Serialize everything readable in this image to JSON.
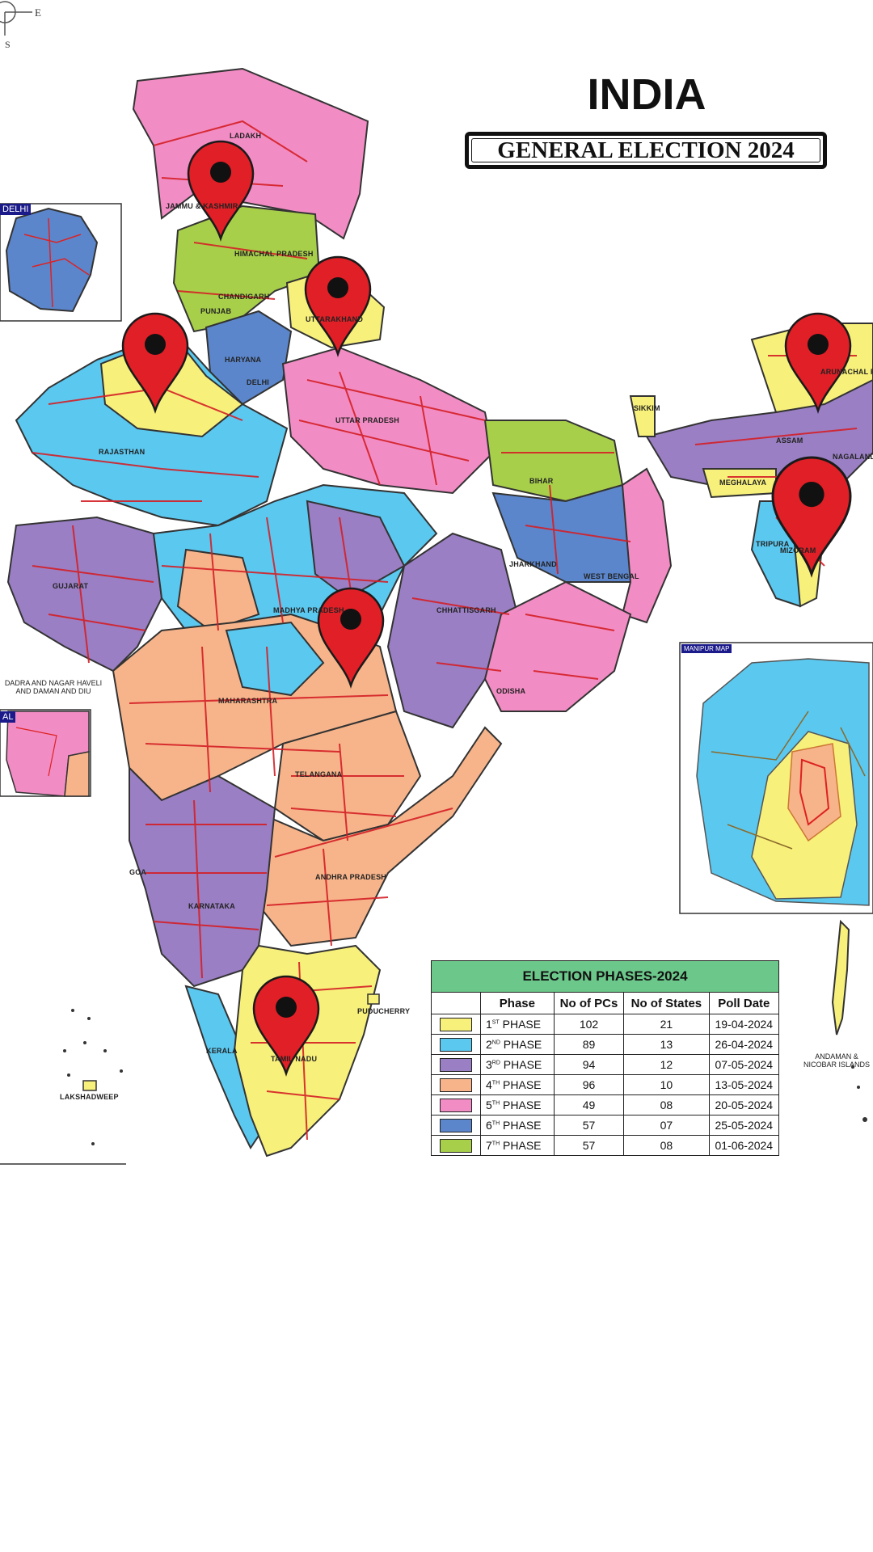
{
  "map": {
    "title": "INDIA",
    "subtitle": "GENERAL ELECTION 2024",
    "compass": {
      "east": "E",
      "south": "S"
    },
    "insets": {
      "delhi": "DELHI",
      "manipur": "MANIPUR MAP",
      "goa": "AL"
    },
    "region_labels": [
      "LADAKH",
      "JAMMU & KASHMIR",
      "HIMACHAL PRADESH",
      "CHANDIGARH",
      "PUNJAB",
      "UTTARAKHAND",
      "HARYANA",
      "DELHI",
      "RAJASTHAN",
      "UTTAR PRADESH",
      "SIKKIM",
      "ARUNACHAL PRADESH",
      "ASSAM",
      "NAGALAND",
      "MEGHALAYA",
      "BIHAR",
      "TRIPURA",
      "MIZORAM",
      "JHARKHAND",
      "WEST BENGAL",
      "GUJARAT",
      "MADHYA PRADESH",
      "CHHATTISGARH",
      "ODISHA",
      "MAHARASHTRA",
      "TELANGANA",
      "ANDHRA PRADESH",
      "KARNATAKA",
      "GOA",
      "KERALA",
      "TAMIL NADU",
      "PUDUCHERRY",
      "LAKSHADWEEP",
      "ANDAMAN & NICOBAR ISLANDS",
      "DADRA AND NAGAR HAVELI AND DAMAN AND DIU"
    ],
    "pins": [
      {
        "name": "pin-jammu-kashmir"
      },
      {
        "name": "pin-uttarakhand"
      },
      {
        "name": "pin-rajasthan"
      },
      {
        "name": "pin-arunachal-pradesh"
      },
      {
        "name": "pin-mizoram"
      },
      {
        "name": "pin-madhya-pradesh"
      },
      {
        "name": "pin-tamil-nadu"
      }
    ],
    "pin_color": "#e01f26"
  },
  "table": {
    "title": "ELECTION PHASES-2024",
    "headers": [
      "Phase",
      "No of PCs",
      "No of States",
      "Poll Date"
    ],
    "rows": [
      {
        "ord": "1",
        "sup": "ST",
        "label": "PHASE",
        "pcs": "102",
        "states": "21",
        "date": "19-04-2024",
        "color": "#f7f07a"
      },
      {
        "ord": "2",
        "sup": "ND",
        "label": "PHASE",
        "pcs": "89",
        "states": "13",
        "date": "26-04-2024",
        "color": "#5bc8f0"
      },
      {
        "ord": "3",
        "sup": "RD",
        "label": "PHASE",
        "pcs": "94",
        "states": "12",
        "date": "07-05-2024",
        "color": "#9a7fc4"
      },
      {
        "ord": "4",
        "sup": "TH",
        "label": "PHASE",
        "pcs": "96",
        "states": "10",
        "date": "13-05-2024",
        "color": "#f7b48a"
      },
      {
        "ord": "5",
        "sup": "TH",
        "label": "PHASE",
        "pcs": "49",
        "states": "08",
        "date": "20-05-2024",
        "color": "#f28cc4"
      },
      {
        "ord": "6",
        "sup": "TH",
        "label": "PHASE",
        "pcs": "57",
        "states": "07",
        "date": "25-05-2024",
        "color": "#5b86cc"
      },
      {
        "ord": "7",
        "sup": "TH",
        "label": "PHASE",
        "pcs": "57",
        "states": "08",
        "date": "01-06-2024",
        "color": "#a8cf4a"
      }
    ]
  }
}
